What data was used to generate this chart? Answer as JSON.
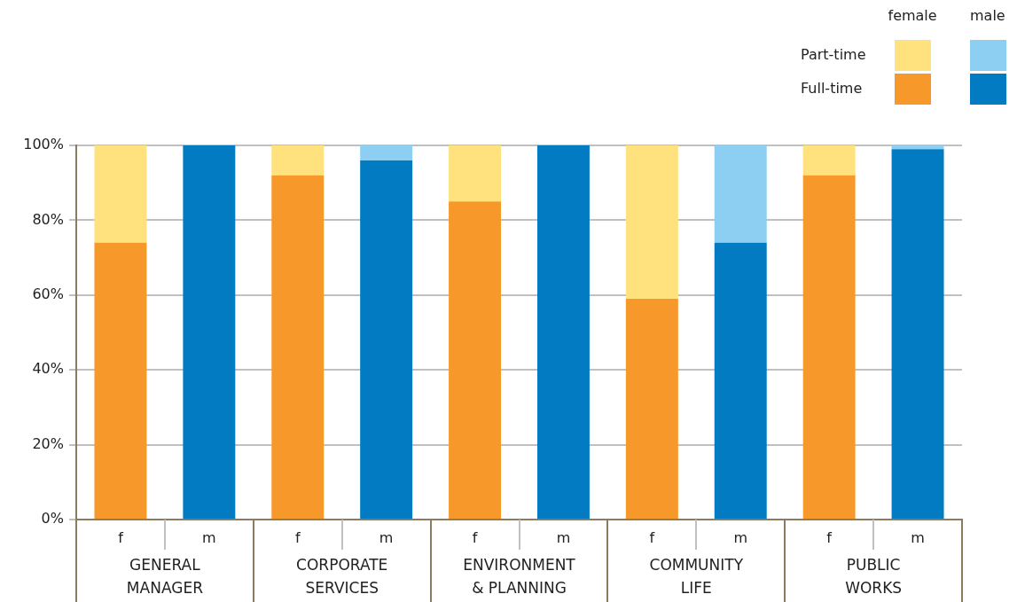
{
  "chart_data": {
    "type": "bar",
    "stacked": true,
    "categories": [
      "f",
      "m",
      "f",
      "m",
      "f",
      "m",
      "f",
      "m",
      "f",
      "m"
    ],
    "series": [
      {
        "name": "Full-time",
        "colors": [
          "#f7982a",
          "#027bc2",
          "#f7982a",
          "#027bc2",
          "#f7982a",
          "#027bc2",
          "#f7982a",
          "#027bc2",
          "#f7982a",
          "#027bc2"
        ],
        "values": [
          74,
          100,
          92,
          96,
          85,
          100,
          59,
          74,
          92,
          99
        ]
      },
      {
        "name": "Part-time",
        "colors": [
          "#ffe17e",
          "#8dcff2",
          "#ffe17e",
          "#8dcff2",
          "#ffe17e",
          "#8dcff2",
          "#ffe17e",
          "#8dcff2",
          "#ffe17e",
          "#8dcff2"
        ],
        "values": [
          26,
          0,
          8,
          4,
          15,
          0,
          41,
          26,
          8,
          1
        ]
      }
    ],
    "ylim": [
      0,
      100
    ],
    "yticks": [
      {
        "value": 0,
        "label": "0%"
      },
      {
        "value": 20,
        "label": "20%"
      },
      {
        "value": 40,
        "label": "40%"
      },
      {
        "value": 60,
        "label": "60%"
      },
      {
        "value": 80,
        "label": "80%"
      },
      {
        "value": 100,
        "label": "100%"
      }
    ],
    "grid": "y",
    "legend": "top right",
    "annotations": [
      "female",
      "male",
      "GENERAL MANAGER",
      "CORPORATE SERVICES",
      "ENVIRONMENT & PLANNING",
      "COMMUNITY LIFE",
      "PUBLIC WORKS"
    ]
  }
}
